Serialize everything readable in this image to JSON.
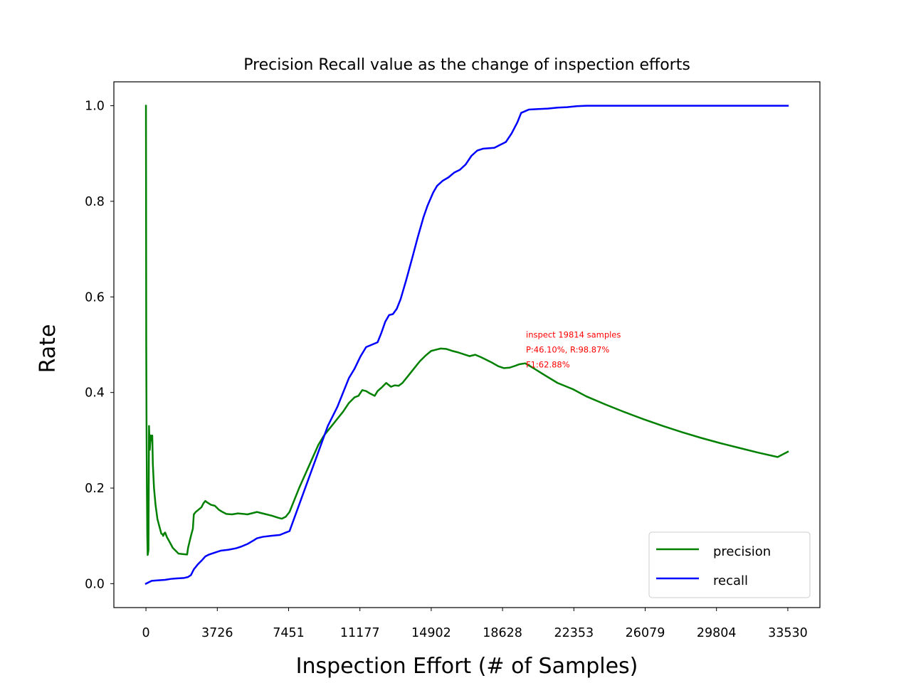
{
  "chart_data": {
    "type": "line",
    "title": "Precision Recall value as the change of inspection efforts",
    "xlabel": "Inspection Effort (# of Samples)",
    "ylabel": "Rate",
    "xlim": [
      -1676,
      35206
    ],
    "ylim": [
      -0.05,
      1.05
    ],
    "xticks": [
      0,
      3726,
      7451,
      11177,
      14902,
      18628,
      22353,
      26079,
      29804,
      33530
    ],
    "xtick_labels": [
      "0",
      "3726",
      "7451",
      "11177",
      "14902",
      "18628",
      "22353",
      "26079",
      "29804",
      "33530"
    ],
    "yticks": [
      0.0,
      0.2,
      0.4,
      0.6,
      0.8,
      1.0
    ],
    "ytick_labels": [
      "0.0",
      "0.2",
      "0.4",
      "0.6",
      "0.8",
      "1.0"
    ],
    "grid": false,
    "legend_position": "lower-right",
    "series": [
      {
        "name": "precision",
        "color": "#008000",
        "points": [
          [
            0,
            1.0
          ],
          [
            15,
            0.5
          ],
          [
            30,
            0.33
          ],
          [
            50,
            0.2
          ],
          [
            70,
            0.1
          ],
          [
            90,
            0.06
          ],
          [
            130,
            0.07
          ],
          [
            160,
            0.33
          ],
          [
            200,
            0.28
          ],
          [
            250,
            0.31
          ],
          [
            290,
            0.3
          ],
          [
            330,
            0.31
          ],
          [
            360,
            0.25
          ],
          [
            420,
            0.2
          ],
          [
            500,
            0.165
          ],
          [
            600,
            0.135
          ],
          [
            700,
            0.12
          ],
          [
            800,
            0.105
          ],
          [
            870,
            0.103
          ],
          [
            900,
            0.1
          ],
          [
            950,
            0.105
          ],
          [
            1000,
            0.107
          ],
          [
            1100,
            0.097
          ],
          [
            1200,
            0.09
          ],
          [
            1400,
            0.075
          ],
          [
            1600,
            0.067
          ],
          [
            1700,
            0.063
          ],
          [
            1900,
            0.062
          ],
          [
            2150,
            0.061
          ],
          [
            2200,
            0.075
          ],
          [
            2350,
            0.1
          ],
          [
            2450,
            0.115
          ],
          [
            2500,
            0.145
          ],
          [
            2600,
            0.15
          ],
          [
            2750,
            0.155
          ],
          [
            2900,
            0.16
          ],
          [
            3000,
            0.168
          ],
          [
            3100,
            0.173
          ],
          [
            3200,
            0.17
          ],
          [
            3400,
            0.165
          ],
          [
            3600,
            0.163
          ],
          [
            3800,
            0.155
          ],
          [
            4000,
            0.15
          ],
          [
            4200,
            0.146
          ],
          [
            4500,
            0.145
          ],
          [
            4800,
            0.147
          ],
          [
            5100,
            0.146
          ],
          [
            5300,
            0.145
          ],
          [
            5600,
            0.148
          ],
          [
            5800,
            0.15
          ],
          [
            6000,
            0.148
          ],
          [
            6300,
            0.145
          ],
          [
            6600,
            0.142
          ],
          [
            6900,
            0.138
          ],
          [
            7100,
            0.136
          ],
          [
            7300,
            0.14
          ],
          [
            7500,
            0.15
          ],
          [
            8000,
            0.2
          ],
          [
            8500,
            0.245
          ],
          [
            9000,
            0.29
          ],
          [
            9300,
            0.31
          ],
          [
            9600,
            0.325
          ],
          [
            10000,
            0.345
          ],
          [
            10300,
            0.36
          ],
          [
            10600,
            0.378
          ],
          [
            10900,
            0.39
          ],
          [
            11100,
            0.393
          ],
          [
            11300,
            0.405
          ],
          [
            11500,
            0.403
          ],
          [
            11700,
            0.398
          ],
          [
            11950,
            0.393
          ],
          [
            12100,
            0.403
          ],
          [
            12300,
            0.41
          ],
          [
            12550,
            0.42
          ],
          [
            12800,
            0.412
          ],
          [
            13000,
            0.415
          ],
          [
            13200,
            0.414
          ],
          [
            13400,
            0.42
          ],
          [
            13700,
            0.435
          ],
          [
            14000,
            0.45
          ],
          [
            14300,
            0.465
          ],
          [
            14600,
            0.477
          ],
          [
            14900,
            0.487
          ],
          [
            15200,
            0.49
          ],
          [
            15400,
            0.492
          ],
          [
            15700,
            0.491
          ],
          [
            16000,
            0.487
          ],
          [
            16300,
            0.484
          ],
          [
            16600,
            0.48
          ],
          [
            16900,
            0.476
          ],
          [
            17200,
            0.479
          ],
          [
            17500,
            0.474
          ],
          [
            17800,
            0.468
          ],
          [
            18100,
            0.462
          ],
          [
            18400,
            0.455
          ],
          [
            18700,
            0.451
          ],
          [
            19000,
            0.452
          ],
          [
            19300,
            0.456
          ],
          [
            19500,
            0.459
          ],
          [
            19814,
            0.461
          ],
          [
            20200,
            0.452
          ],
          [
            20800,
            0.437
          ],
          [
            21500,
            0.42
          ],
          [
            22300,
            0.407
          ],
          [
            23000,
            0.392
          ],
          [
            24000,
            0.375
          ],
          [
            25000,
            0.359
          ],
          [
            26000,
            0.344
          ],
          [
            27000,
            0.33
          ],
          [
            28000,
            0.317
          ],
          [
            29000,
            0.305
          ],
          [
            30000,
            0.294
          ],
          [
            31000,
            0.284
          ],
          [
            32000,
            0.274
          ],
          [
            33000,
            0.265
          ],
          [
            33530,
            0.276
          ]
        ]
      },
      {
        "name": "recall",
        "color": "#0000ff",
        "points": [
          [
            0,
            0.0
          ],
          [
            150,
            0.003
          ],
          [
            300,
            0.006
          ],
          [
            600,
            0.007
          ],
          [
            1000,
            0.008
          ],
          [
            1300,
            0.01
          ],
          [
            1600,
            0.011
          ],
          [
            2000,
            0.012
          ],
          [
            2200,
            0.014
          ],
          [
            2350,
            0.018
          ],
          [
            2500,
            0.03
          ],
          [
            2700,
            0.04
          ],
          [
            2900,
            0.048
          ],
          [
            3100,
            0.057
          ],
          [
            3300,
            0.061
          ],
          [
            3600,
            0.065
          ],
          [
            3900,
            0.069
          ],
          [
            4300,
            0.071
          ],
          [
            4700,
            0.074
          ],
          [
            5000,
            0.078
          ],
          [
            5300,
            0.083
          ],
          [
            5600,
            0.09
          ],
          [
            5800,
            0.095
          ],
          [
            6100,
            0.098
          ],
          [
            6500,
            0.1
          ],
          [
            7000,
            0.102
          ],
          [
            7300,
            0.107
          ],
          [
            7500,
            0.11
          ],
          [
            8000,
            0.165
          ],
          [
            8500,
            0.22
          ],
          [
            9000,
            0.275
          ],
          [
            9500,
            0.33
          ],
          [
            10000,
            0.37
          ],
          [
            10300,
            0.4
          ],
          [
            10600,
            0.43
          ],
          [
            10900,
            0.45
          ],
          [
            11200,
            0.475
          ],
          [
            11500,
            0.495
          ],
          [
            11800,
            0.5
          ],
          [
            12100,
            0.505
          ],
          [
            12300,
            0.525
          ],
          [
            12500,
            0.548
          ],
          [
            12700,
            0.562
          ],
          [
            12900,
            0.564
          ],
          [
            13100,
            0.575
          ],
          [
            13300,
            0.595
          ],
          [
            13600,
            0.636
          ],
          [
            13900,
            0.68
          ],
          [
            14200,
            0.725
          ],
          [
            14500,
            0.767
          ],
          [
            14700,
            0.79
          ],
          [
            15000,
            0.818
          ],
          [
            15200,
            0.832
          ],
          [
            15500,
            0.843
          ],
          [
            15800,
            0.85
          ],
          [
            16100,
            0.86
          ],
          [
            16400,
            0.866
          ],
          [
            16700,
            0.877
          ],
          [
            17000,
            0.895
          ],
          [
            17300,
            0.906
          ],
          [
            17600,
            0.91
          ],
          [
            17900,
            0.911
          ],
          [
            18200,
            0.912
          ],
          [
            18500,
            0.918
          ],
          [
            18800,
            0.924
          ],
          [
            19100,
            0.942
          ],
          [
            19400,
            0.965
          ],
          [
            19600,
            0.985
          ],
          [
            19814,
            0.9887
          ],
          [
            20000,
            0.992
          ],
          [
            20500,
            0.993
          ],
          [
            21000,
            0.994
          ],
          [
            21500,
            0.996
          ],
          [
            22000,
            0.997
          ],
          [
            22500,
            0.999
          ],
          [
            23000,
            1.0
          ],
          [
            25000,
            1.0
          ],
          [
            28000,
            1.0
          ],
          [
            31000,
            1.0
          ],
          [
            33530,
            1.0
          ]
        ]
      }
    ],
    "annotations": [
      {
        "x": 19814,
        "y": 0.461,
        "color": "#ff0000",
        "lines": [
          "inspect 19814 samples",
          "P:46.10%, R:98.87%",
          "F1:62.88%"
        ]
      }
    ]
  }
}
